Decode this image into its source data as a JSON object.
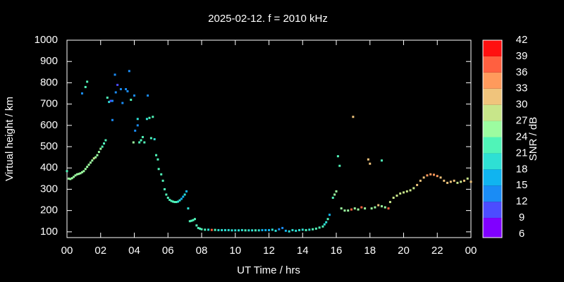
{
  "chart_data": {
    "type": "scatter",
    "title": "2025-02-12. f = 2010 kHz",
    "x_label": "UT Time / hrs",
    "y_label": "Virtual height / km",
    "colorbar_label": "SNR / dB",
    "xlim": [
      0,
      24
    ],
    "xticks": [
      {
        "value": 0,
        "label": "00"
      },
      {
        "value": 2,
        "label": "02"
      },
      {
        "value": 4,
        "label": "04"
      },
      {
        "value": 6,
        "label": "06"
      },
      {
        "value": 8,
        "label": "08"
      },
      10,
      12,
      14,
      16,
      18,
      20,
      22,
      {
        "value": 24,
        "label": "00"
      }
    ],
    "ylim": [
      73,
      1000
    ],
    "yticks": [
      100,
      200,
      300,
      400,
      500,
      600,
      700,
      800,
      900,
      1000
    ],
    "colorbar_lim": [
      6,
      42
    ],
    "colorbar_ticks": [
      6,
      9,
      12,
      15,
      18,
      21,
      24,
      27,
      30,
      33,
      36,
      39,
      42
    ],
    "colorbar_colors": [
      "#8000ff",
      "#4c4cff",
      "#1a8cf5",
      "#10b4f0",
      "#2ee0d4",
      "#50f4b8",
      "#9cfca0",
      "#c8e68a",
      "#f0c47c",
      "#ff9a5c",
      "#ff6040",
      "#ff1010"
    ],
    "x": [
      0,
      0.1,
      0.2,
      0.3,
      0.4,
      0.5,
      0.6,
      0.7,
      0.8,
      0.9,
      1.0,
      1.1,
      1.2,
      1.3,
      1.4,
      1.5,
      1.6,
      1.7,
      1.8,
      1.9,
      2.0,
      2.1,
      2.2,
      2.3,
      0.9,
      1.1,
      1.2,
      2.4,
      2.5,
      2.6,
      2.7,
      2.7,
      2.85,
      2.9,
      3.0,
      3.2,
      3.3,
      3.5,
      3.6,
      3.7,
      3.8,
      3.95,
      4.0,
      4.05,
      4.2,
      4.2,
      4.3,
      4.4,
      4.5,
      4.6,
      4.75,
      4.8,
      4.9,
      5.0,
      5.1,
      5.2,
      5.3,
      5.4,
      5.45,
      5.6,
      5.7,
      5.8,
      5.9,
      6.0,
      6.1,
      6.2,
      6.3,
      6.4,
      6.5,
      6.6,
      6.7,
      6.8,
      6.9,
      7.0,
      7.1,
      7.2,
      7.3,
      7.4,
      7.5,
      7.6,
      7.7,
      7.8,
      7.9,
      8.0,
      8.2,
      8.4,
      8.6,
      8.8,
      9.0,
      9.2,
      9.4,
      9.6,
      9.8,
      10.0,
      10.2,
      10.4,
      10.6,
      10.8,
      11.0,
      11.2,
      11.4,
      11.6,
      11.8,
      12.0,
      12.2,
      12.4,
      12.6,
      12.8,
      13.0,
      13.2,
      13.4,
      13.6,
      13.8,
      14.0,
      14.2,
      14.4,
      14.6,
      14.8,
      15.0,
      15.2,
      15.3,
      15.4,
      15.5,
      15.6,
      15.8,
      15.9,
      16.0,
      16.1,
      16.2,
      16.3,
      16.5,
      16.7,
      16.9,
      17.0,
      17.1,
      17.3,
      17.5,
      17.7,
      17.9,
      18.0,
      18.1,
      18.3,
      18.5,
      18.7,
      18.7,
      18.9,
      19.1,
      19.2,
      19.4,
      19.6,
      19.8,
      20.0,
      20.2,
      20.4,
      20.6,
      20.8,
      21.0,
      21.2,
      21.4,
      21.6,
      21.8,
      22.0,
      22.2,
      22.4,
      22.6,
      22.8,
      23.0,
      23.2,
      23.4,
      23.6,
      23.8,
      24.0
    ],
    "values": [
      385,
      350,
      348,
      352,
      358,
      365,
      370,
      372,
      375,
      380,
      385,
      395,
      405,
      415,
      425,
      435,
      445,
      450,
      460,
      475,
      490,
      500,
      515,
      530,
      750,
      780,
      805,
      730,
      710,
      715,
      715,
      625,
      838,
      755,
      790,
      770,
      705,
      770,
      760,
      855,
      720,
      520,
      740,
      575,
      600,
      630,
      520,
      530,
      545,
      520,
      630,
      740,
      635,
      540,
      640,
      535,
      460,
      440,
      395,
      370,
      340,
      300,
      275,
      260,
      250,
      245,
      242,
      240,
      240,
      242,
      248,
      255,
      265,
      275,
      290,
      210,
      150,
      152,
      155,
      160,
      130,
      118,
      115,
      112,
      110,
      110,
      109,
      109,
      108,
      108,
      108,
      108,
      107,
      107,
      107,
      108,
      107,
      107,
      107,
      107,
      107,
      108,
      108,
      108,
      110,
      105,
      112,
      118,
      105,
      102,
      108,
      105,
      108,
      110,
      108,
      110,
      112,
      115,
      120,
      125,
      135,
      145,
      160,
      180,
      260,
      275,
      290,
      455,
      410,
      210,
      200,
      200,
      205,
      640,
      210,
      205,
      215,
      210,
      440,
      420,
      210,
      215,
      225,
      435,
      220,
      215,
      210,
      240,
      260,
      270,
      280,
      285,
      290,
      295,
      305,
      320,
      340,
      355,
      365,
      370,
      368,
      362,
      355,
      340,
      330,
      335,
      340,
      330,
      335,
      340,
      350,
      335
    ],
    "snr": [
      22,
      24,
      24,
      24,
      24,
      24,
      24,
      24,
      24,
      24,
      25,
      25,
      25,
      25,
      26,
      26,
      27,
      26,
      26,
      25,
      24,
      23,
      22,
      22,
      13,
      21,
      21,
      21,
      18,
      11,
      12,
      12,
      12,
      12,
      11,
      12,
      12,
      12,
      12,
      12,
      21,
      24,
      12,
      12,
      12,
      18,
      21,
      21,
      21,
      21,
      18,
      12,
      21,
      21,
      21,
      18,
      21,
      21,
      22,
      22,
      22,
      22,
      21,
      21,
      21,
      21,
      21,
      21,
      21,
      20,
      18,
      15,
      15,
      18,
      15,
      18,
      21,
      21,
      21,
      21,
      21,
      21,
      21,
      21,
      21,
      20,
      36,
      21,
      20,
      20,
      20,
      20,
      20,
      20,
      20,
      20,
      21,
      20,
      20,
      21,
      20,
      15,
      15,
      15,
      18,
      18,
      12,
      12,
      15,
      18,
      18,
      18,
      18,
      18,
      21,
      18,
      21,
      21,
      21,
      21,
      18,
      18,
      21,
      15,
      21,
      24,
      24,
      21,
      21,
      24,
      24,
      24,
      36,
      30,
      24,
      24,
      36,
      24,
      30,
      30,
      24,
      24,
      30,
      21,
      24,
      24,
      36,
      27,
      27,
      27,
      27,
      27,
      27,
      27,
      28,
      30,
      31,
      32,
      33,
      34,
      33,
      33,
      32,
      31,
      30,
      30,
      30,
      29,
      29,
      30,
      29,
      30
    ]
  }
}
